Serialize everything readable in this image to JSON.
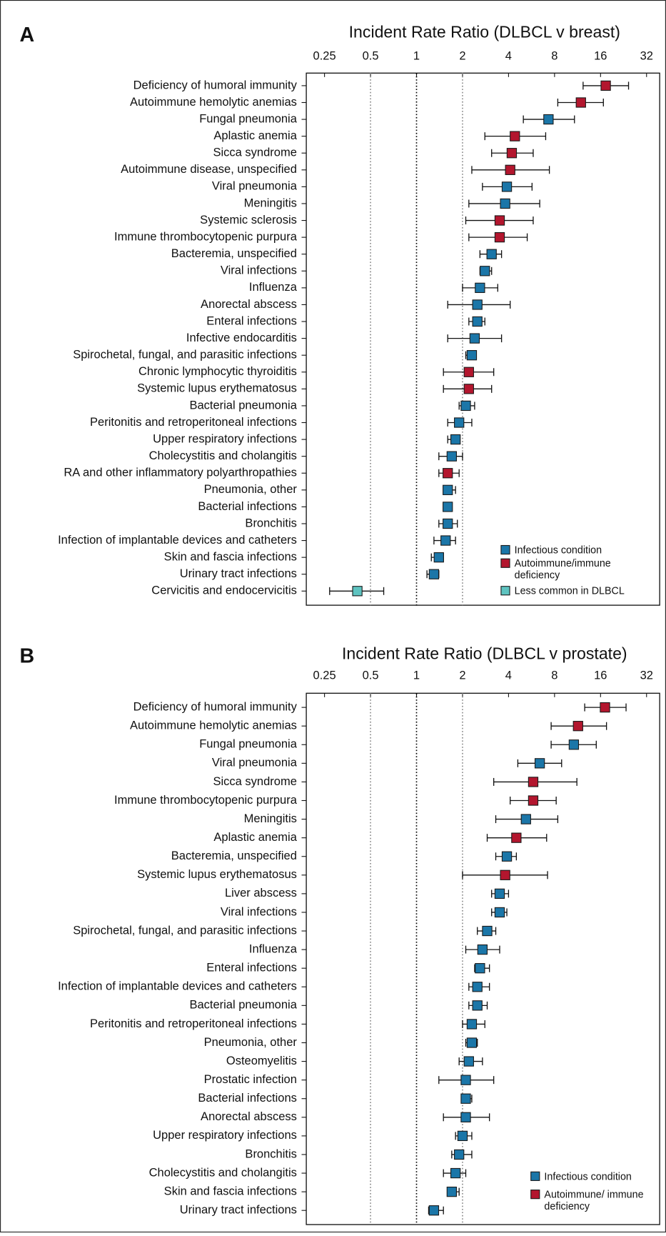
{
  "chart_data": [
    {
      "type": "forest",
      "panel": "A",
      "title": "Incident Rate Ratio (DLBCL v breast)",
      "categories": [
        "Deficiency of humoral immunity",
        "Autoimmune hemolytic anemias",
        "Fungal pneumonia",
        "Aplastic anemia",
        "Sicca syndrome",
        "Autoimmune disease, unspecified",
        "Viral pneumonia",
        "Meningitis",
        "Systemic sclerosis",
        "Immune thrombocytopenic purpura",
        "Bacteremia, unspecified",
        "Viral infections",
        "Influenza",
        "Anorectal abscess",
        "Enteral infections",
        "Infective endocarditis",
        "Spirochetal, fungal, and parasitic infections",
        "Chronic lymphocytic thyroiditis",
        "Systemic lupus erythematosus",
        "Bacterial pneumonia",
        "Peritonitis and retroperitoneal infections",
        "Upper respiratory infections",
        "Cholecystitis and cholangitis",
        "RA and other inflammatory polyarthropathies",
        "Pneumonia, other",
        "Bacterial infections",
        "Bronchitis",
        "Infection of implantable devices and catheters",
        "Skin and fascia infections",
        "Urinary tract infections",
        "Cervicitis and endocervicitis"
      ],
      "series": [
        {
          "name": "Infectious condition",
          "color": "#1b76a8",
          "values": [
            null,
            null,
            7.3,
            null,
            null,
            null,
            3.9,
            3.8,
            null,
            null,
            3.1,
            2.8,
            2.6,
            2.5,
            2.5,
            2.4,
            2.3,
            null,
            null,
            2.1,
            1.9,
            1.8,
            1.7,
            null,
            1.6,
            1.6,
            1.6,
            1.55,
            1.4,
            1.3,
            null
          ],
          "lower": [
            null,
            null,
            5.0,
            null,
            null,
            null,
            2.7,
            2.2,
            null,
            null,
            2.6,
            2.6,
            2.0,
            1.6,
            2.2,
            1.6,
            2.1,
            null,
            null,
            1.9,
            1.6,
            1.6,
            1.4,
            null,
            1.5,
            1.5,
            1.4,
            1.3,
            1.25,
            1.17,
            null
          ],
          "upper": [
            null,
            null,
            10.8,
            null,
            null,
            null,
            5.7,
            6.4,
            null,
            null,
            3.6,
            3.1,
            3.4,
            4.1,
            2.8,
            3.6,
            2.4,
            null,
            null,
            2.4,
            2.3,
            1.9,
            2.0,
            null,
            1.8,
            1.7,
            1.85,
            1.8,
            1.5,
            1.4,
            null
          ]
        },
        {
          "name": "Autoimmune/immune deficiency",
          "color": "#b3162e",
          "values": [
            17.3,
            11.9,
            null,
            4.4,
            4.2,
            4.1,
            null,
            null,
            3.5,
            3.5,
            null,
            null,
            null,
            null,
            null,
            null,
            null,
            2.2,
            2.2,
            null,
            null,
            null,
            null,
            1.6,
            null,
            null,
            null,
            null,
            null,
            null,
            null
          ],
          "lower": [
            12.3,
            8.4,
            null,
            2.8,
            3.1,
            2.3,
            null,
            null,
            2.1,
            2.2,
            null,
            null,
            null,
            null,
            null,
            null,
            null,
            1.5,
            1.5,
            null,
            null,
            null,
            null,
            1.4,
            null,
            null,
            null,
            null,
            null,
            null,
            null
          ],
          "upper": [
            24.4,
            16.7,
            null,
            7.0,
            5.8,
            7.4,
            null,
            null,
            5.8,
            5.3,
            null,
            null,
            null,
            null,
            null,
            null,
            null,
            3.2,
            3.1,
            null,
            null,
            null,
            null,
            1.9,
            null,
            null,
            null,
            null,
            null,
            null,
            null
          ]
        },
        {
          "name": "Less common in DLBCL",
          "color": "#5ec3c0",
          "values": [
            null,
            null,
            null,
            null,
            null,
            null,
            null,
            null,
            null,
            null,
            null,
            null,
            null,
            null,
            null,
            null,
            null,
            null,
            null,
            null,
            null,
            null,
            null,
            null,
            null,
            null,
            null,
            null,
            null,
            null,
            0.41
          ],
          "lower": [
            null,
            null,
            null,
            null,
            null,
            null,
            null,
            null,
            null,
            null,
            null,
            null,
            null,
            null,
            null,
            null,
            null,
            null,
            null,
            null,
            null,
            null,
            null,
            null,
            null,
            null,
            null,
            null,
            null,
            null,
            0.27
          ],
          "upper": [
            null,
            null,
            null,
            null,
            null,
            null,
            null,
            null,
            null,
            null,
            null,
            null,
            null,
            null,
            null,
            null,
            null,
            null,
            null,
            null,
            null,
            null,
            null,
            null,
            null,
            null,
            null,
            null,
            null,
            null,
            0.61
          ]
        }
      ],
      "xlim": [
        0.19,
        39
      ],
      "xticks": [
        0.25,
        0.5,
        1,
        2,
        4,
        8,
        16,
        32
      ],
      "log_x": true,
      "reference_lines": [
        {
          "value": 0.5,
          "color": "#8a8a8a"
        },
        {
          "value": 1,
          "color": "#000000"
        },
        {
          "value": 2,
          "color": "#8a8a8a"
        }
      ],
      "legend": "lower right"
    },
    {
      "type": "forest",
      "panel": "B",
      "title": "Incident Rate Ratio (DLBCL v prostate)",
      "categories": [
        "Deficiency of humoral immunity",
        "Autoimmune hemolytic anemias",
        "Fungal pneumonia",
        "Viral pneumonia",
        "Sicca syndrome",
        "Immune thrombocytopenic purpura",
        "Meningitis",
        "Aplastic anemia",
        "Bacteremia, unspecified",
        "Systemic lupus erythematosus",
        "Liver abscess",
        "Viral infections",
        "Spirochetal, fungal, and parasitic infections",
        "Influenza",
        "Enteral infections",
        "Infection of implantable devices and catheters",
        "Bacterial pneumonia",
        "Peritonitis and retroperitoneal infections",
        "Pneumonia, other",
        "Osteomyelitis",
        "Prostatic infection",
        "Bacterial infections",
        "Anorectal abscess",
        "Upper respiratory infections",
        "Bronchitis",
        "Cholecystitis and cholangitis",
        "Skin and fascia infections",
        "Urinary tract infections"
      ],
      "series": [
        {
          "name": "Infectious condition",
          "color": "#1b76a8",
          "values": [
            null,
            null,
            10.7,
            6.4,
            null,
            null,
            5.2,
            null,
            3.9,
            null,
            3.5,
            3.5,
            2.9,
            2.7,
            2.6,
            2.5,
            2.5,
            2.3,
            2.3,
            2.2,
            2.1,
            2.1,
            2.1,
            2.0,
            1.9,
            1.8,
            1.7,
            1.3
          ],
          "lower": [
            null,
            null,
            7.6,
            4.6,
            null,
            null,
            3.3,
            null,
            3.3,
            null,
            3.1,
            3.1,
            2.5,
            2.1,
            2.4,
            2.2,
            2.2,
            2.0,
            2.1,
            1.9,
            1.4,
            2.0,
            1.5,
            1.8,
            1.7,
            1.5,
            1.6,
            1.2
          ],
          "upper": [
            null,
            null,
            15.0,
            8.9,
            null,
            null,
            8.4,
            null,
            4.5,
            null,
            4.0,
            3.9,
            3.3,
            3.5,
            3.0,
            3.0,
            2.9,
            2.8,
            2.5,
            2.7,
            3.2,
            2.3,
            3.0,
            2.3,
            2.3,
            2.1,
            1.9,
            1.5
          ]
        },
        {
          "name": "Autoimmune/ immune deficiency",
          "color": "#b3162e",
          "values": [
            17.1,
            11.4,
            null,
            null,
            5.8,
            5.8,
            null,
            4.5,
            null,
            3.8,
            null,
            null,
            null,
            null,
            null,
            null,
            null,
            null,
            null,
            null,
            null,
            null,
            null,
            null,
            null,
            null,
            null,
            null
          ],
          "lower": [
            12.6,
            7.6,
            null,
            null,
            3.2,
            4.1,
            null,
            2.9,
            null,
            2.0,
            null,
            null,
            null,
            null,
            null,
            null,
            null,
            null,
            null,
            null,
            null,
            null,
            null,
            null,
            null,
            null,
            null,
            null
          ],
          "upper": [
            23.5,
            17.5,
            null,
            null,
            11.2,
            8.2,
            null,
            7.1,
            null,
            7.2,
            null,
            null,
            null,
            null,
            null,
            null,
            null,
            null,
            null,
            null,
            null,
            null,
            null,
            null,
            null,
            null,
            null,
            null
          ]
        }
      ],
      "xlim": [
        0.19,
        39
      ],
      "xticks": [
        0.25,
        0.5,
        1,
        2,
        4,
        8,
        16,
        32
      ],
      "log_x": true,
      "reference_lines": [
        {
          "value": 0.5,
          "color": "#8a8a8a"
        },
        {
          "value": 1,
          "color": "#000000"
        },
        {
          "value": 2,
          "color": "#8a8a8a"
        }
      ],
      "legend": "lower right"
    }
  ]
}
